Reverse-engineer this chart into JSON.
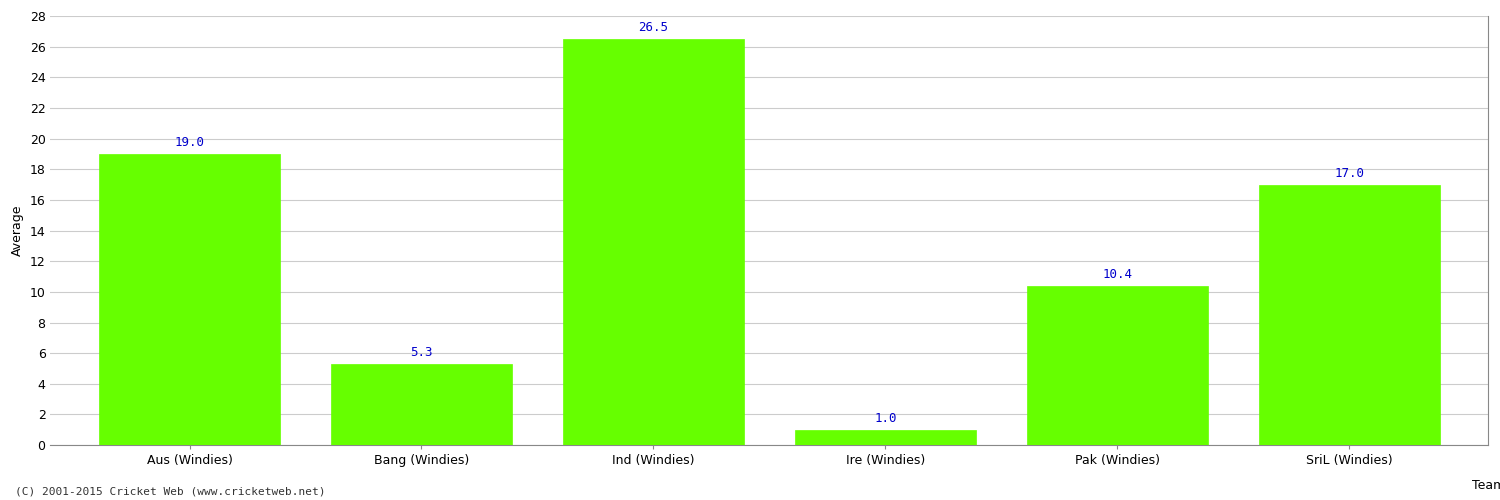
{
  "categories": [
    "Aus (Windies)",
    "Bang (Windies)",
    "Ind (Windies)",
    "Ire (Windies)",
    "Pak (Windies)",
    "SriL (Windies)"
  ],
  "values": [
    19.0,
    5.3,
    26.5,
    1.0,
    10.4,
    17.0
  ],
  "bar_color": "#66ff00",
  "bar_edge_color": "#66ff00",
  "label_color": "#0000cc",
  "xlabel": "Team",
  "ylabel": "Average",
  "ylim": [
    0,
    28
  ],
  "yticks": [
    0,
    2,
    4,
    6,
    8,
    10,
    12,
    14,
    16,
    18,
    20,
    22,
    24,
    26,
    28
  ],
  "grid_color": "#cccccc",
  "background_color": "#ffffff",
  "footer": "(C) 2001-2015 Cricket Web (www.cricketweb.net)",
  "label_fontsize": 9,
  "axis_fontsize": 9,
  "tick_fontsize": 9,
  "bar_width": 0.78
}
